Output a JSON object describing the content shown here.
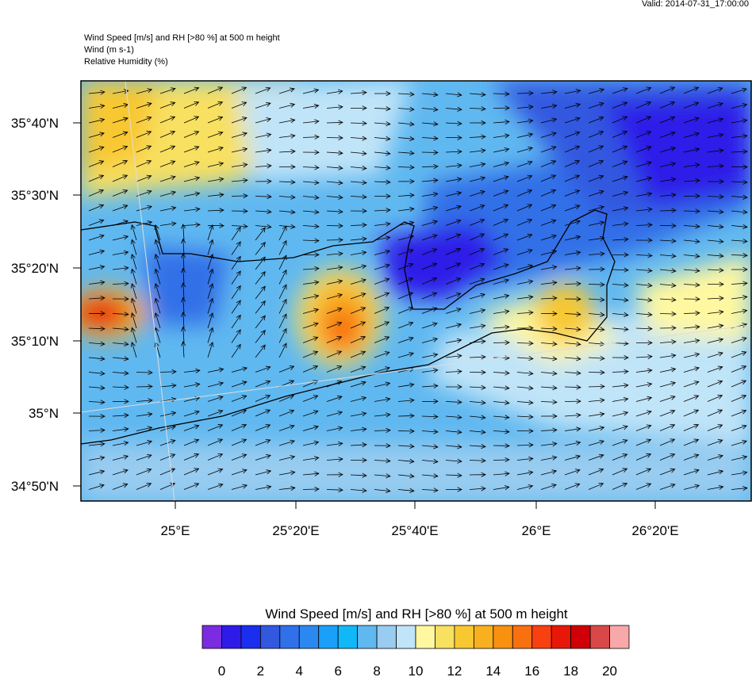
{
  "header": {
    "valid": "Valid: 2014-07-31_17:00:00",
    "lines": [
      "Wind Speed [m/s] and RH [>80 %] at 500 m height",
      "Wind   (m s-1)",
      "Relative Humidity   (%)"
    ]
  },
  "map": {
    "lat_labels": [
      "35°40'N",
      "35°30'N",
      "35°20'N",
      "35°10'N",
      "35°N",
      "34°50'N"
    ],
    "lon_labels": [
      "25°E",
      "25°20'E",
      "25°40'E",
      "26°E",
      "26°20'E"
    ]
  },
  "colorbar": {
    "title": "Wind Speed [m/s] and RH [>80 %] at 500 m height",
    "colors": [
      "#7b2be0",
      "#2f1be8",
      "#1a2ef0",
      "#3358e0",
      "#3070e8",
      "#2a88f0",
      "#1aa0f8",
      "#10b8f8",
      "#60b8f0",
      "#98ccf0",
      "#c0e4f8",
      "#fff8a0",
      "#f8e060",
      "#f8c830",
      "#f8b020",
      "#f89010",
      "#f87010",
      "#f84010",
      "#e81808",
      "#d00008",
      "#d84848",
      "#f8a8a8"
    ],
    "ticks": [
      0,
      2,
      4,
      6,
      8,
      10,
      12,
      14,
      16,
      18,
      20
    ]
  }
}
